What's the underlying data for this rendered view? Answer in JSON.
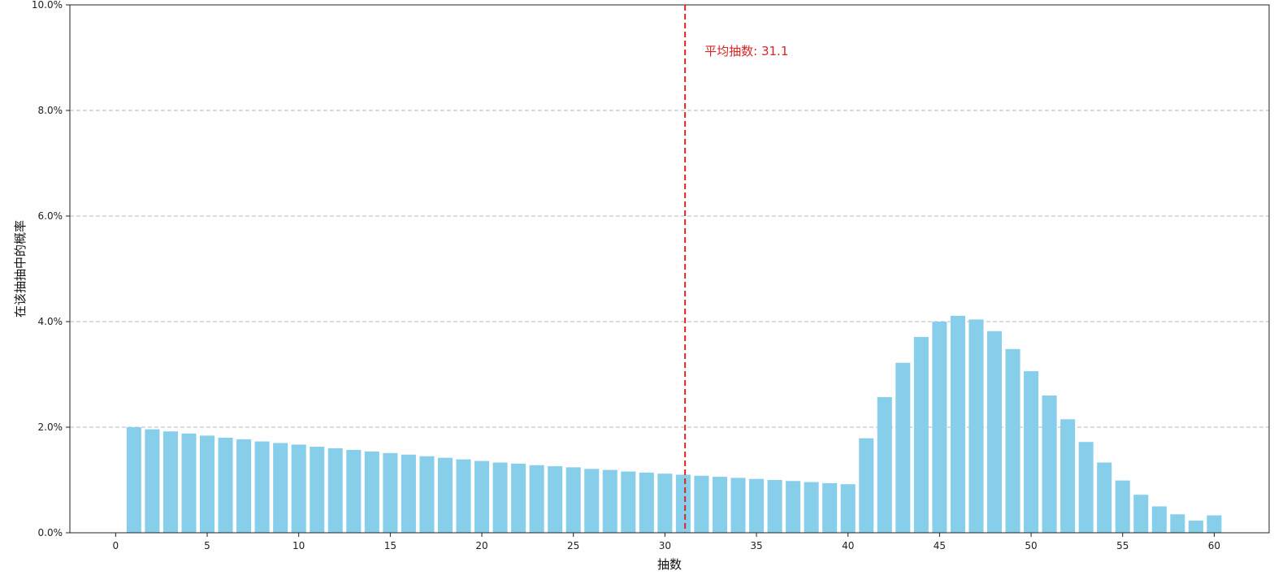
{
  "chart_data": {
    "type": "bar",
    "xlabel": "抽数",
    "ylabel": "在该抽抽中的概率",
    "xlim": [
      -2.5,
      63
    ],
    "ylim": [
      0,
      10
    ],
    "x_ticks": [
      0,
      5,
      10,
      15,
      20,
      25,
      30,
      35,
      40,
      45,
      50,
      55,
      60
    ],
    "y_ticks": [
      0,
      2,
      4,
      6,
      8,
      10
    ],
    "y_tick_labels": [
      "0.0%",
      "2.0%",
      "4.0%",
      "6.0%",
      "8.0%",
      "10.0%"
    ],
    "grid": "y-dashed",
    "colors": {
      "bar": "#87ceeb",
      "mean_line": "#d62728",
      "grid": "#bbbbbb",
      "axis": "#222222"
    },
    "x": [
      1,
      2,
      3,
      4,
      5,
      6,
      7,
      8,
      9,
      10,
      11,
      12,
      13,
      14,
      15,
      16,
      17,
      18,
      19,
      20,
      21,
      22,
      23,
      24,
      25,
      26,
      27,
      28,
      29,
      30,
      31,
      32,
      33,
      34,
      35,
      36,
      37,
      38,
      39,
      40,
      41,
      42,
      43,
      44,
      45,
      46,
      47,
      48,
      49,
      50,
      51,
      52,
      53,
      54,
      55,
      56,
      57,
      58,
      59,
      60
    ],
    "values": [
      2.0,
      1.96,
      1.92,
      1.88,
      1.84,
      1.8,
      1.77,
      1.73,
      1.7,
      1.67,
      1.63,
      1.6,
      1.57,
      1.54,
      1.51,
      1.48,
      1.45,
      1.42,
      1.39,
      1.36,
      1.33,
      1.31,
      1.28,
      1.26,
      1.24,
      1.21,
      1.19,
      1.16,
      1.14,
      1.12,
      1.1,
      1.08,
      1.06,
      1.04,
      1.02,
      1.0,
      0.98,
      0.96,
      0.94,
      0.92,
      1.79,
      2.57,
      3.22,
      3.71,
      4.0,
      4.11,
      4.04,
      3.82,
      3.48,
      3.06,
      2.6,
      2.15,
      1.72,
      1.33,
      0.99,
      0.72,
      0.5,
      0.35,
      0.23,
      0.33
    ],
    "mean_line": {
      "x": 31.1,
      "label": "平均抽数: 31.1"
    }
  }
}
